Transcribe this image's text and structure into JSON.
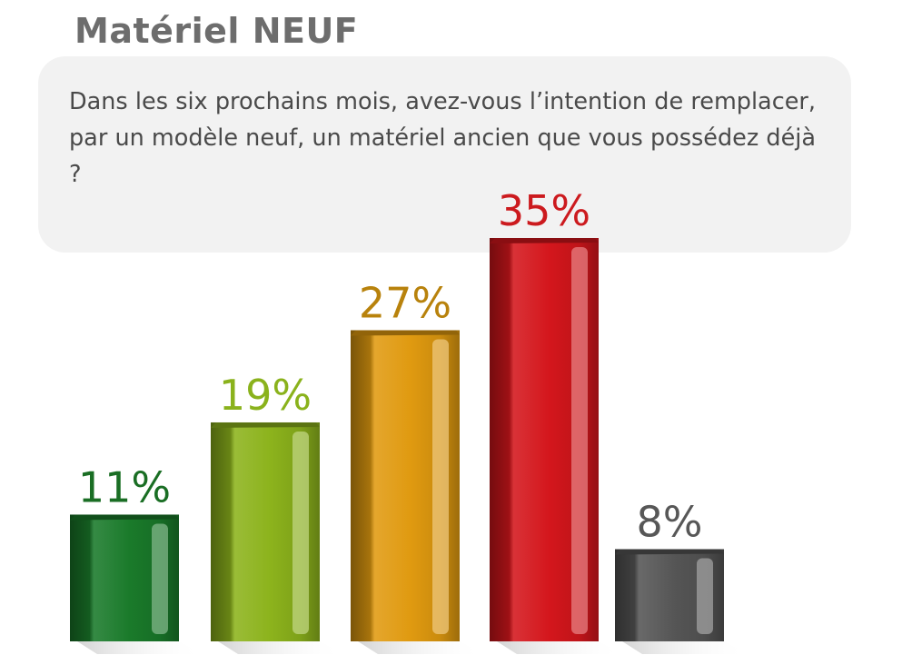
{
  "title": "Matériel NEUF",
  "question": "Dans les six prochains mois, avez-vous l’intention de remplacer, par un modèle neuf, un matériel ancien que vous possédez déjà ?",
  "chart_data": {
    "type": "bar",
    "categories": [
      "",
      "",
      "",
      "",
      ""
    ],
    "values": [
      11,
      19,
      27,
      35,
      8
    ],
    "data_labels": [
      "11%",
      "19%",
      "27%",
      "35%",
      "8%"
    ],
    "colors": [
      "#1a7a2a",
      "#8cb31c",
      "#e09a10",
      "#d4161c",
      "#555555"
    ],
    "label_colors": [
      "#1a6e24",
      "#8ab21c",
      "#b8820c",
      "#cc1a1e",
      "#575757"
    ],
    "ylim": [
      0,
      35
    ],
    "grid": false,
    "legend": "none"
  }
}
